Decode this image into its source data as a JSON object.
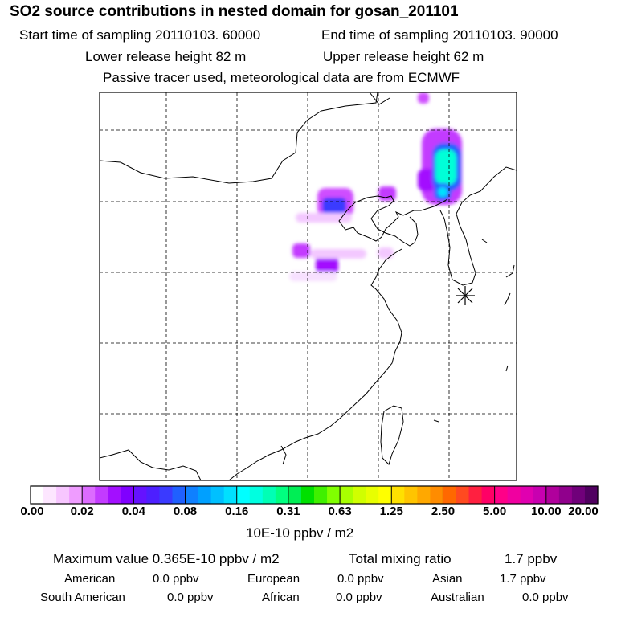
{
  "header": {
    "title": "SO2 source contributions in nested domain for gosan_201101",
    "start_sampling": "Start time of sampling 20110103. 60000",
    "end_sampling": "End time of sampling 20110103. 90000",
    "lower_release": "Lower release height   82 m",
    "upper_release": "Upper release height   62 m",
    "tracer_note": "Passive tracer used, meteorological data are from ECMWF"
  },
  "colorbar": {
    "ticks": [
      "0.00",
      "0.02",
      "0.04",
      "0.08",
      "0.16",
      "0.31",
      "0.63",
      "1.25",
      "2.50",
      "5.00",
      "10.00",
      "20.00"
    ],
    "colors": [
      "#ffffff",
      "#fde6ff",
      "#f7c6ff",
      "#ef9cff",
      "#dc6bff",
      "#c33bff",
      "#a30fff",
      "#8000ff",
      "#6512ff",
      "#4d1fff",
      "#3a3aff",
      "#2060ff",
      "#0f80ff",
      "#00a0ff",
      "#00c0ff",
      "#00e0ff",
      "#00ffff",
      "#00ffe0",
      "#00ffb5",
      "#00ff80",
      "#00ee55",
      "#00e000",
      "#40f000",
      "#80ff00",
      "#a8ff00",
      "#d0ff00",
      "#e8ff00",
      "#ffff00",
      "#ffe000",
      "#ffc400",
      "#ffa800",
      "#ff8c00",
      "#ff6800",
      "#ff4a20",
      "#ff2040",
      "#ff0066",
      "#ff0088",
      "#f000a0",
      "#e000b0",
      "#c800b0",
      "#b0009c",
      "#90008c",
      "#70007a",
      "#500060"
    ],
    "units": "10E-10 ppbv / m2"
  },
  "stats": {
    "max_label": "Maximum value  0.365E-10 ppbv / m2",
    "total_label": "Total mixing ratio",
    "total_value": "1.7 ppbv",
    "regions": [
      {
        "name": "American",
        "value": "0.0 ppbv"
      },
      {
        "name": "European",
        "value": "0.0 ppbv"
      },
      {
        "name": "Asian",
        "value": "1.7 ppbv"
      },
      {
        "name": "South American",
        "value": "0.0 ppbv"
      },
      {
        "name": "African",
        "value": "0.0 ppbv"
      },
      {
        "name": "Australian",
        "value": "0.0 ppbv"
      }
    ]
  },
  "map": {
    "receptor_marker": "star-icon",
    "colors": {
      "plume_light": "#f3c8ff",
      "plume_mid": "#cf4dff",
      "plume_dark": "#3a3aff",
      "plume_core": "#00ffd8",
      "coast": "#000000"
    }
  }
}
